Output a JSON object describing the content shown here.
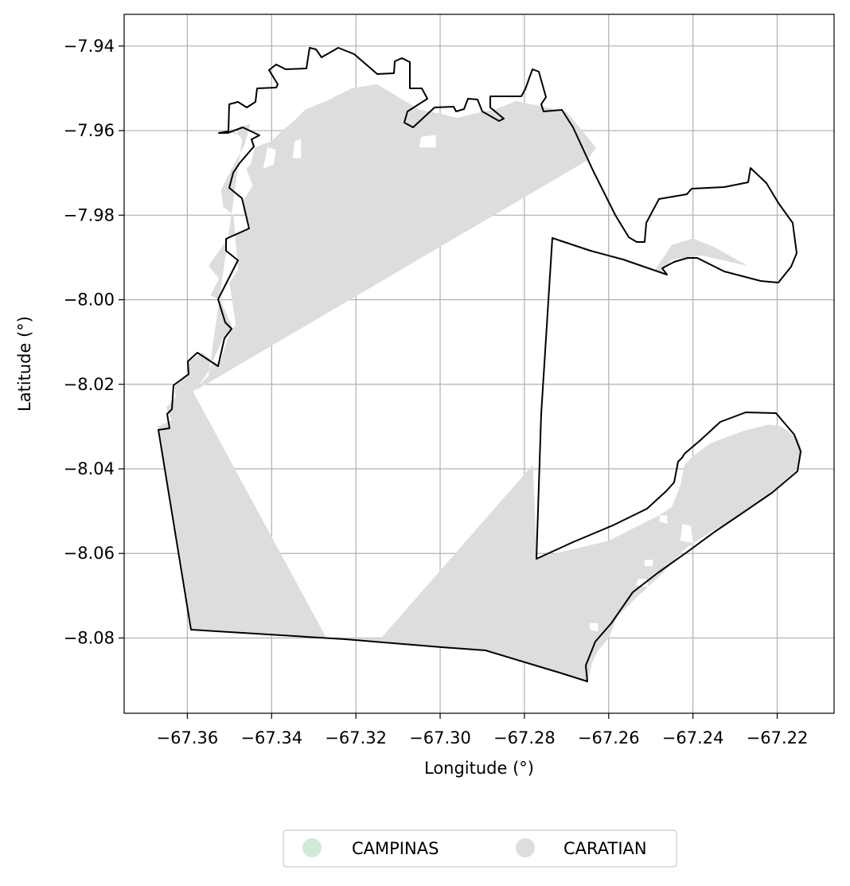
{
  "chart_data": {
    "type": "map",
    "xlabel": "Longitude (°)",
    "ylabel": "Latitude (°)",
    "xlim": [
      -67.375,
      -67.2065
    ],
    "ylim": [
      -8.0978,
      -7.9325
    ],
    "grid": true,
    "x_ticks": [
      -67.36,
      -67.34,
      -67.32,
      -67.3,
      -67.28,
      -67.26,
      -67.24,
      -67.22
    ],
    "x_tick_labels": [
      "−67.36",
      "−67.34",
      "−67.32",
      "−67.30",
      "−67.28",
      "−67.26",
      "−67.24",
      "−67.22"
    ],
    "y_ticks": [
      -7.94,
      -7.96,
      -7.98,
      -8.0,
      -8.02,
      -8.04,
      -8.06,
      -8.08
    ],
    "y_tick_labels": [
      "−7.94",
      "−7.96",
      "−7.98",
      "−8.00",
      "−8.02",
      "−8.04",
      "−8.06",
      "−8.08"
    ],
    "legend": {
      "placement": "bottom-center",
      "entries": [
        {
          "label": "CAMPINAS",
          "color": "#cdeadb"
        },
        {
          "label": "CARATIAN",
          "color": "#dddddd"
        }
      ]
    },
    "fill_color": "#dddddd",
    "outline_color": "#000000",
    "regions": [
      {
        "name": "CARATIAN",
        "rings": [
          [
            [
              -67.3507,
              -7.96
            ],
            [
              -67.3485,
              -7.961
            ],
            [
              -67.3475,
              -7.959
            ],
            [
              -67.345,
              -7.9585
            ],
            [
              -67.3465,
              -7.9635
            ],
            [
              -67.35,
              -7.97
            ],
            [
              -67.352,
              -7.974
            ],
            [
              -67.3515,
              -7.978
            ],
            [
              -67.349,
              -7.98
            ],
            [
              -67.348,
              -7.993
            ],
            [
              -67.35,
              -7.996
            ],
            [
              -67.3485,
              -8.006
            ],
            [
              -67.3515,
              -8.009
            ],
            [
              -67.355,
              -8.017
            ],
            [
              -67.3585,
              -8.022
            ],
            [
              -67.327,
              -8.08
            ],
            [
              -67.314,
              -8.08
            ],
            [
              -67.278,
              -8.039
            ],
            [
              -67.277,
              -8.061
            ],
            [
              -67.26,
              -8.057
            ],
            [
              -67.248,
              -8.051
            ],
            [
              -67.245,
              -8.049
            ],
            [
              -67.243,
              -8.044
            ],
            [
              -67.242,
              -8.039
            ],
            [
              -67.24,
              -8.037
            ],
            [
              -67.236,
              -8.034
            ],
            [
              -67.228,
              -8.031
            ],
            [
              -67.222,
              -8.0295
            ],
            [
              -67.219,
              -8.03
            ],
            [
              -67.215,
              -8.033
            ],
            [
              -67.214,
              -8.036
            ],
            [
              -67.215,
              -8.04
            ],
            [
              -67.222,
              -8.046
            ],
            [
              -67.229,
              -8.051
            ],
            [
              -67.236,
              -8.055
            ],
            [
              -67.242,
              -8.059
            ],
            [
              -67.247,
              -8.0645
            ],
            [
              -67.254,
              -8.071
            ],
            [
              -67.258,
              -8.075
            ],
            [
              -67.26,
              -8.08
            ],
            [
              -67.2625,
              -8.083
            ],
            [
              -67.264,
              -8.086
            ],
            [
              -67.265,
              -8.0905
            ],
            [
              -67.288,
              -8.083
            ],
            [
              -67.328,
              -8.08
            ],
            [
              -67.359,
              -8.078
            ],
            [
              -67.367,
              -8.03
            ],
            [
              -67.3637,
              -8.0285
            ],
            [
              -67.365,
              -8.0255
            ],
            [
              -67.3628,
              -8.023
            ],
            [
              -67.363,
              -8.02
            ],
            [
              -67.36,
              -8.0175
            ],
            [
              -67.3595,
              -8.0145
            ],
            [
              -67.3565,
              -8.0125
            ],
            [
              -67.3525,
              -8.0155
            ],
            [
              -67.3505,
              -8.0095
            ],
            [
              -67.3493,
              -8.0065
            ],
            [
              -67.3522,
              -8.0
            ],
            [
              -67.3545,
              -7.999
            ],
            [
              -67.3525,
              -7.995
            ],
            [
              -67.355,
              -7.992
            ],
            [
              -67.35,
              -7.985
            ],
            [
              -67.345,
              -7.983
            ],
            [
              -67.347,
              -7.977
            ],
            [
              -67.3445,
              -7.973
            ],
            [
              -67.346,
              -7.969
            ],
            [
              -67.345,
              -7.968
            ],
            [
              -67.344,
              -7.964
            ],
            [
              -67.34,
              -7.9625
            ],
            [
              -67.3375,
              -7.96
            ],
            [
              -67.335,
              -7.958
            ],
            [
              -67.332,
              -7.955
            ],
            [
              -67.327,
              -7.953
            ],
            [
              -67.321,
              -7.95
            ],
            [
              -67.315,
              -7.949
            ],
            [
              -67.31,
              -7.952
            ],
            [
              -67.305,
              -7.955
            ],
            [
              -67.3,
              -7.956
            ],
            [
              -67.296,
              -7.957
            ],
            [
              -67.292,
              -7.956
            ],
            [
              -67.287,
              -7.955
            ],
            [
              -67.282,
              -7.953
            ],
            [
              -67.27,
              -7.9555
            ],
            [
              -67.263,
              -7.964
            ],
            [
              -67.265,
              -7.967
            ],
            [
              -67.359,
              -8.022
            ],
            [
              -67.355,
              -8.018
            ],
            [
              -67.347,
              -7.962
            ],
            [
              -67.3495,
              -7.9595
            ]
          ],
          [
            [
              -67.249,
              -7.993
            ],
            [
              -67.245,
              -7.987
            ],
            [
              -67.24,
              -7.9855
            ],
            [
              -67.235,
              -7.9875
            ],
            [
              -67.227,
              -7.992
            ],
            [
              -67.238,
              -7.9895
            ],
            [
              -67.245,
              -7.9905
            ],
            [
              -67.2475,
              -7.9935
            ]
          ]
        ],
        "holes": [
          [
            [
              -67.342,
              -7.969
            ],
            [
              -67.3395,
              -7.968
            ],
            [
              -67.339,
              -7.9645
            ],
            [
              -67.341,
              -7.964
            ]
          ],
          [
            [
              -67.335,
              -7.9665
            ],
            [
              -67.333,
              -7.9665
            ],
            [
              -67.333,
              -7.962
            ],
            [
              -67.3345,
              -7.9625
            ]
          ],
          [
            [
              -67.305,
              -7.964
            ],
            [
              -67.301,
              -7.964
            ],
            [
              -67.301,
              -7.961
            ],
            [
              -67.3045,
              -7.9615
            ]
          ],
          [
            [
              -67.248,
              -8.0525
            ],
            [
              -67.246,
              -8.053
            ],
            [
              -67.2462,
              -8.051
            ],
            [
              -67.2478,
              -8.051
            ]
          ],
          [
            [
              -67.243,
              -8.057
            ],
            [
              -67.24,
              -8.0575
            ],
            [
              -67.2405,
              -8.0535
            ],
            [
              -67.2425,
              -8.053
            ]
          ],
          [
            [
              -67.2515,
              -8.063
            ],
            [
              -67.2495,
              -8.063
            ],
            [
              -67.2495,
              -8.0615
            ],
            [
              -67.2515,
              -8.0615
            ]
          ],
          [
            [
              -67.2535,
              -8.0675
            ],
            [
              -67.2505,
              -8.068
            ],
            [
              -67.251,
              -8.066
            ],
            [
              -67.253,
              -8.066
            ]
          ],
          [
            [
              -67.2645,
              -8.078
            ],
            [
              -67.2625,
              -8.0785
            ],
            [
              -67.2625,
              -8.0765
            ],
            [
              -67.2645,
              -8.0765
            ]
          ]
        ]
      }
    ],
    "boundary": [
      [
        -67.3507,
        -7.96
      ],
      [
        -67.347,
        -7.9595
      ],
      [
        -67.347,
        -7.953
      ],
      [
        -67.3445,
        -7.9525
      ],
      [
        -67.3445,
        -7.95
      ],
      [
        -67.34,
        -7.9505
      ],
      [
        -67.3385,
        -7.95
      ],
      [
        -67.339,
        -7.947
      ],
      [
        -67.3375,
        -7.946
      ],
      [
        -67.3345,
        -7.945
      ],
      [
        -67.331,
        -7.945
      ],
      [
        -67.3295,
        -7.946
      ],
      [
        -67.3275,
        -7.946
      ],
      [
        -67.328,
        -7.941
      ],
      [
        -67.3265,
        -7.9412
      ],
      [
        -67.325,
        -7.943
      ],
      [
        -67.3235,
        -7.942
      ],
      [
        -67.3215,
        -7.94
      ],
      [
        -67.3175,
        -7.942
      ],
      [
        -67.3145,
        -7.9435
      ],
      [
        -67.312,
        -7.947
      ],
      [
        -67.308,
        -7.9468
      ],
      [
        -67.3075,
        -7.943
      ],
      [
        -67.306,
        -7.942
      ],
      [
        -67.3045,
        -7.943
      ],
      [
        -67.3045,
        -7.95
      ],
      [
        -67.302,
        -7.951
      ],
      [
        -67.298,
        -7.952
      ],
      [
        -67.2965,
        -7.9535
      ],
      [
        -67.296,
        -7.9565
      ],
      [
        -67.2945,
        -7.958
      ],
      [
        -67.2915,
        -7.9585
      ],
      [
        -67.2895,
        -7.9575
      ],
      [
        -67.288,
        -7.9555
      ],
      [
        -67.286,
        -7.953
      ],
      [
        -67.283,
        -7.951
      ],
      [
        -67.2815,
        -7.949
      ],
      [
        -67.28,
        -7.948
      ],
      [
        -67.278,
        -7.949
      ],
      [
        -67.276,
        -7.95
      ],
      [
        -67.274,
        -7.948
      ],
      [
        -67.27,
        -7.95
      ],
      [
        -67.268,
        -7.947
      ],
      [
        -67.2655,
        -7.946
      ],
      [
        -67.264,
        -7.942
      ],
      [
        -67.264,
        -7.9405
      ],
      [
        -67.265,
        -7.9395
      ],
      [
        -67.262,
        -7.939
      ],
      [
        -67.261,
        -7.9405
      ],
      [
        -67.26,
        -7.942
      ],
      [
        -67.258,
        -7.945
      ],
      [
        -67.255,
        -7.947
      ],
      [
        -67.25,
        -7.946
      ],
      [
        -67.247,
        -7.944
      ],
      [
        -67.245,
        -7.9455
      ],
      [
        -67.245,
        -7.947
      ],
      [
        -67.2455,
        -7.9505
      ],
      [
        -67.246,
        -7.952
      ],
      [
        -67.2455,
        -7.953
      ],
      [
        -67.243,
        -7.9545
      ],
      [
        -67.242,
        -7.956
      ],
      [
        -67.243,
        -7.962
      ],
      [
        -67.245,
        -7.964
      ],
      [
        -67.25,
        -7.9635
      ],
      [
        -67.255,
        -7.964
      ],
      [
        -67.2575,
        -7.965
      ],
      [
        -67.2585,
        -7.9665
      ],
      [
        -67.258,
        -7.969
      ],
      [
        -67.261,
        -7.9695
      ],
      [
        -67.262,
        -7.971
      ],
      [
        -67.266,
        -7.973
      ],
      [
        -67.27,
        -7.9755
      ],
      [
        -67.268,
        -7.98
      ],
      [
        -67.2715,
        -7.9815
      ],
      [
        -67.2755,
        -7.982
      ],
      [
        -67.28,
        -7.983
      ],
      [
        -67.284,
        -7.985
      ],
      [
        -67.288,
        -7.9855
      ],
      [
        -67.291,
        -7.986
      ],
      [
        -67.292,
        -7.9885
      ],
      [
        -67.29,
        -7.99
      ],
      [
        -67.286,
        -7.991
      ],
      [
        -67.279,
        -7.995
      ],
      [
        -67.274,
        -8.0
      ],
      [
        -67.2735,
        -7.9985
      ],
      [
        -67.2745,
        -7.9935
      ],
      [
        -67.2755,
        -7.989
      ],
      [
        -67.2765,
        -7.9855
      ],
      [
        -67.277,
        -7.983
      ]
    ],
    "boundary_segments": [
      [
        [
          -67.3507,
          -7.96
        ],
        [
          -67.348,
          -7.959
        ],
        [
          -67.3475,
          -7.9535
        ],
        [
          -67.345,
          -7.9525
        ],
        [
          -67.343,
          -7.953
        ],
        [
          -67.3415,
          -7.954
        ],
        [
          -67.3415,
          -7.952
        ],
        [
          -67.3385,
          -7.9505
        ],
        [
          -67.3365,
          -7.9505
        ],
        [
          -67.3365,
          -7.95
        ],
        [
          -67.335,
          -7.95
        ],
        [
          -67.3355,
          -7.9465
        ],
        [
          -67.3365,
          -7.9455
        ],
        [
          -67.3345,
          -7.945
        ],
        [
          -67.331,
          -7.9455
        ],
        [
          -67.3295,
          -7.9455
        ],
        [
          -67.3285,
          -7.9455
        ],
        [
          -67.3288,
          -7.9405
        ],
        [
          -67.328,
          -7.9405
        ],
        [
          -67.3265,
          -7.9425
        ],
        [
          -67.3255,
          -7.9415
        ],
        [
          -67.3245,
          -7.94
        ],
        [
          -67.3225,
          -7.9405
        ],
        [
          -67.32,
          -7.942
        ],
        [
          -67.3175,
          -7.9445
        ],
        [
          -67.3155,
          -7.947
        ],
        [
          -67.3125,
          -7.9468
        ],
        [
          -67.3115,
          -7.943
        ],
        [
          -67.31,
          -7.942
        ],
        [
          -67.3085,
          -7.943
        ],
        [
          -67.3085,
          -7.95
        ],
        [
          -67.306,
          -7.9505
        ],
        [
          -67.305,
          -7.9515
        ],
        [
          -67.3035,
          -7.952
        ],
        [
          -67.302,
          -7.953
        ],
        [
          -67.3005,
          -7.954
        ],
        [
          -67.3005,
          -7.956
        ],
        [
          -67.299,
          -7.956
        ],
        [
          -67.2985,
          -7.958
        ],
        [
          -67.296,
          -7.959
        ],
        [
          -67.293,
          -7.9585
        ],
        [
          -67.2915,
          -7.9575
        ],
        [
          -67.2895,
          -7.956
        ],
        [
          -67.288,
          -7.954
        ],
        [
          -67.2865,
          -7.9525
        ]
      ],
      [
        [
          -67.2865,
          -7.9525
        ]
      ]
    ],
    "_note": "placeholder"
  }
}
